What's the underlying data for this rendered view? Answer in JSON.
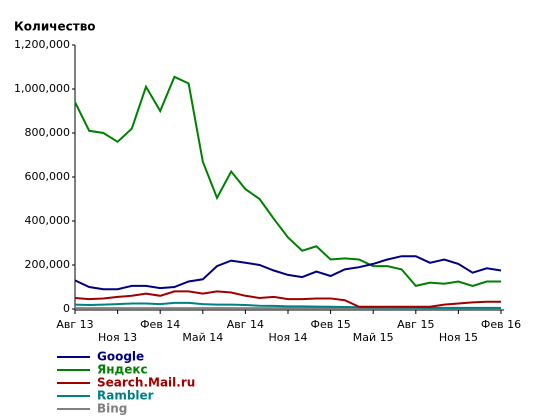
{
  "chart_data": {
    "type": "line",
    "title": "Количество",
    "categories": [
      "Авг 13",
      null,
      null,
      "Ноя 13",
      null,
      null,
      "Фев 14",
      null,
      null,
      "Май 14",
      null,
      null,
      "Авг 14",
      null,
      null,
      "Ноя 14",
      null,
      null,
      "Фев 15",
      null,
      null,
      "Май 15",
      null,
      null,
      "Авг 15",
      null,
      null,
      "Ноя 15",
      null,
      null,
      "Фев 16"
    ],
    "ylim": [
      0,
      1200000
    ],
    "yticks": [
      0,
      {
        "value": 200000,
        "label": "200,000"
      },
      {
        "value": 400000,
        "label": "400,000"
      },
      {
        "value": 600000,
        "label": "600,000"
      },
      {
        "value": 800000,
        "label": "800,000"
      },
      {
        "value": 1000000,
        "label": "1,000,000"
      },
      {
        "value": 1200000,
        "label": "1,200,000"
      }
    ],
    "series": [
      {
        "name": "Google",
        "color": "#000080",
        "values": [
          130000,
          100000,
          90000,
          90000,
          105000,
          105000,
          95000,
          100000,
          125000,
          135000,
          195000,
          220000,
          210000,
          200000,
          175000,
          155000,
          145000,
          170000,
          150000,
          180000,
          190000,
          205000,
          225000,
          240000,
          240000,
          210000,
          225000,
          205000,
          165000,
          185000,
          175000
        ]
      },
      {
        "name": "Яндекс",
        "color": "#008000",
        "values": [
          940000,
          810000,
          800000,
          760000,
          820000,
          1010000,
          900000,
          1055000,
          1025000,
          670000,
          505000,
          625000,
          545000,
          500000,
          410000,
          325000,
          265000,
          285000,
          225000,
          230000,
          225000,
          195000,
          195000,
          180000,
          105000,
          120000,
          115000,
          125000,
          105000,
          125000,
          125000
        ]
      },
      {
        "name": "Search.Mail.ru",
        "color": "#a00000",
        "values": [
          50000,
          45000,
          48000,
          55000,
          60000,
          70000,
          60000,
          80000,
          80000,
          70000,
          80000,
          75000,
          60000,
          50000,
          55000,
          45000,
          45000,
          48000,
          48000,
          40000,
          10000,
          10000,
          10000,
          10000,
          10000,
          10000,
          20000,
          25000,
          30000,
          33000,
          33000
        ]
      },
      {
        "name": "Rambler",
        "color": "#008080",
        "values": [
          20000,
          18000,
          20000,
          22000,
          25000,
          25000,
          22000,
          28000,
          28000,
          22000,
          20000,
          20000,
          18000,
          15000,
          14000,
          12000,
          12000,
          11000,
          10000,
          9000,
          8000,
          7000,
          7000,
          6000,
          6000,
          5000,
          5000,
          5000,
          5000,
          5000,
          5000
        ]
      },
      {
        "name": "Bing",
        "color": "#808080",
        "values": [
          4000,
          4000,
          4000,
          4000,
          4000,
          4000,
          4000,
          4000,
          4000,
          4000,
          4000,
          4000,
          4000,
          4000,
          4000,
          4000,
          4000,
          4000,
          4000,
          4000,
          4000,
          4000,
          4000,
          4000,
          4000,
          4000,
          4000,
          4000,
          4000,
          4000,
          4000
        ]
      }
    ]
  }
}
